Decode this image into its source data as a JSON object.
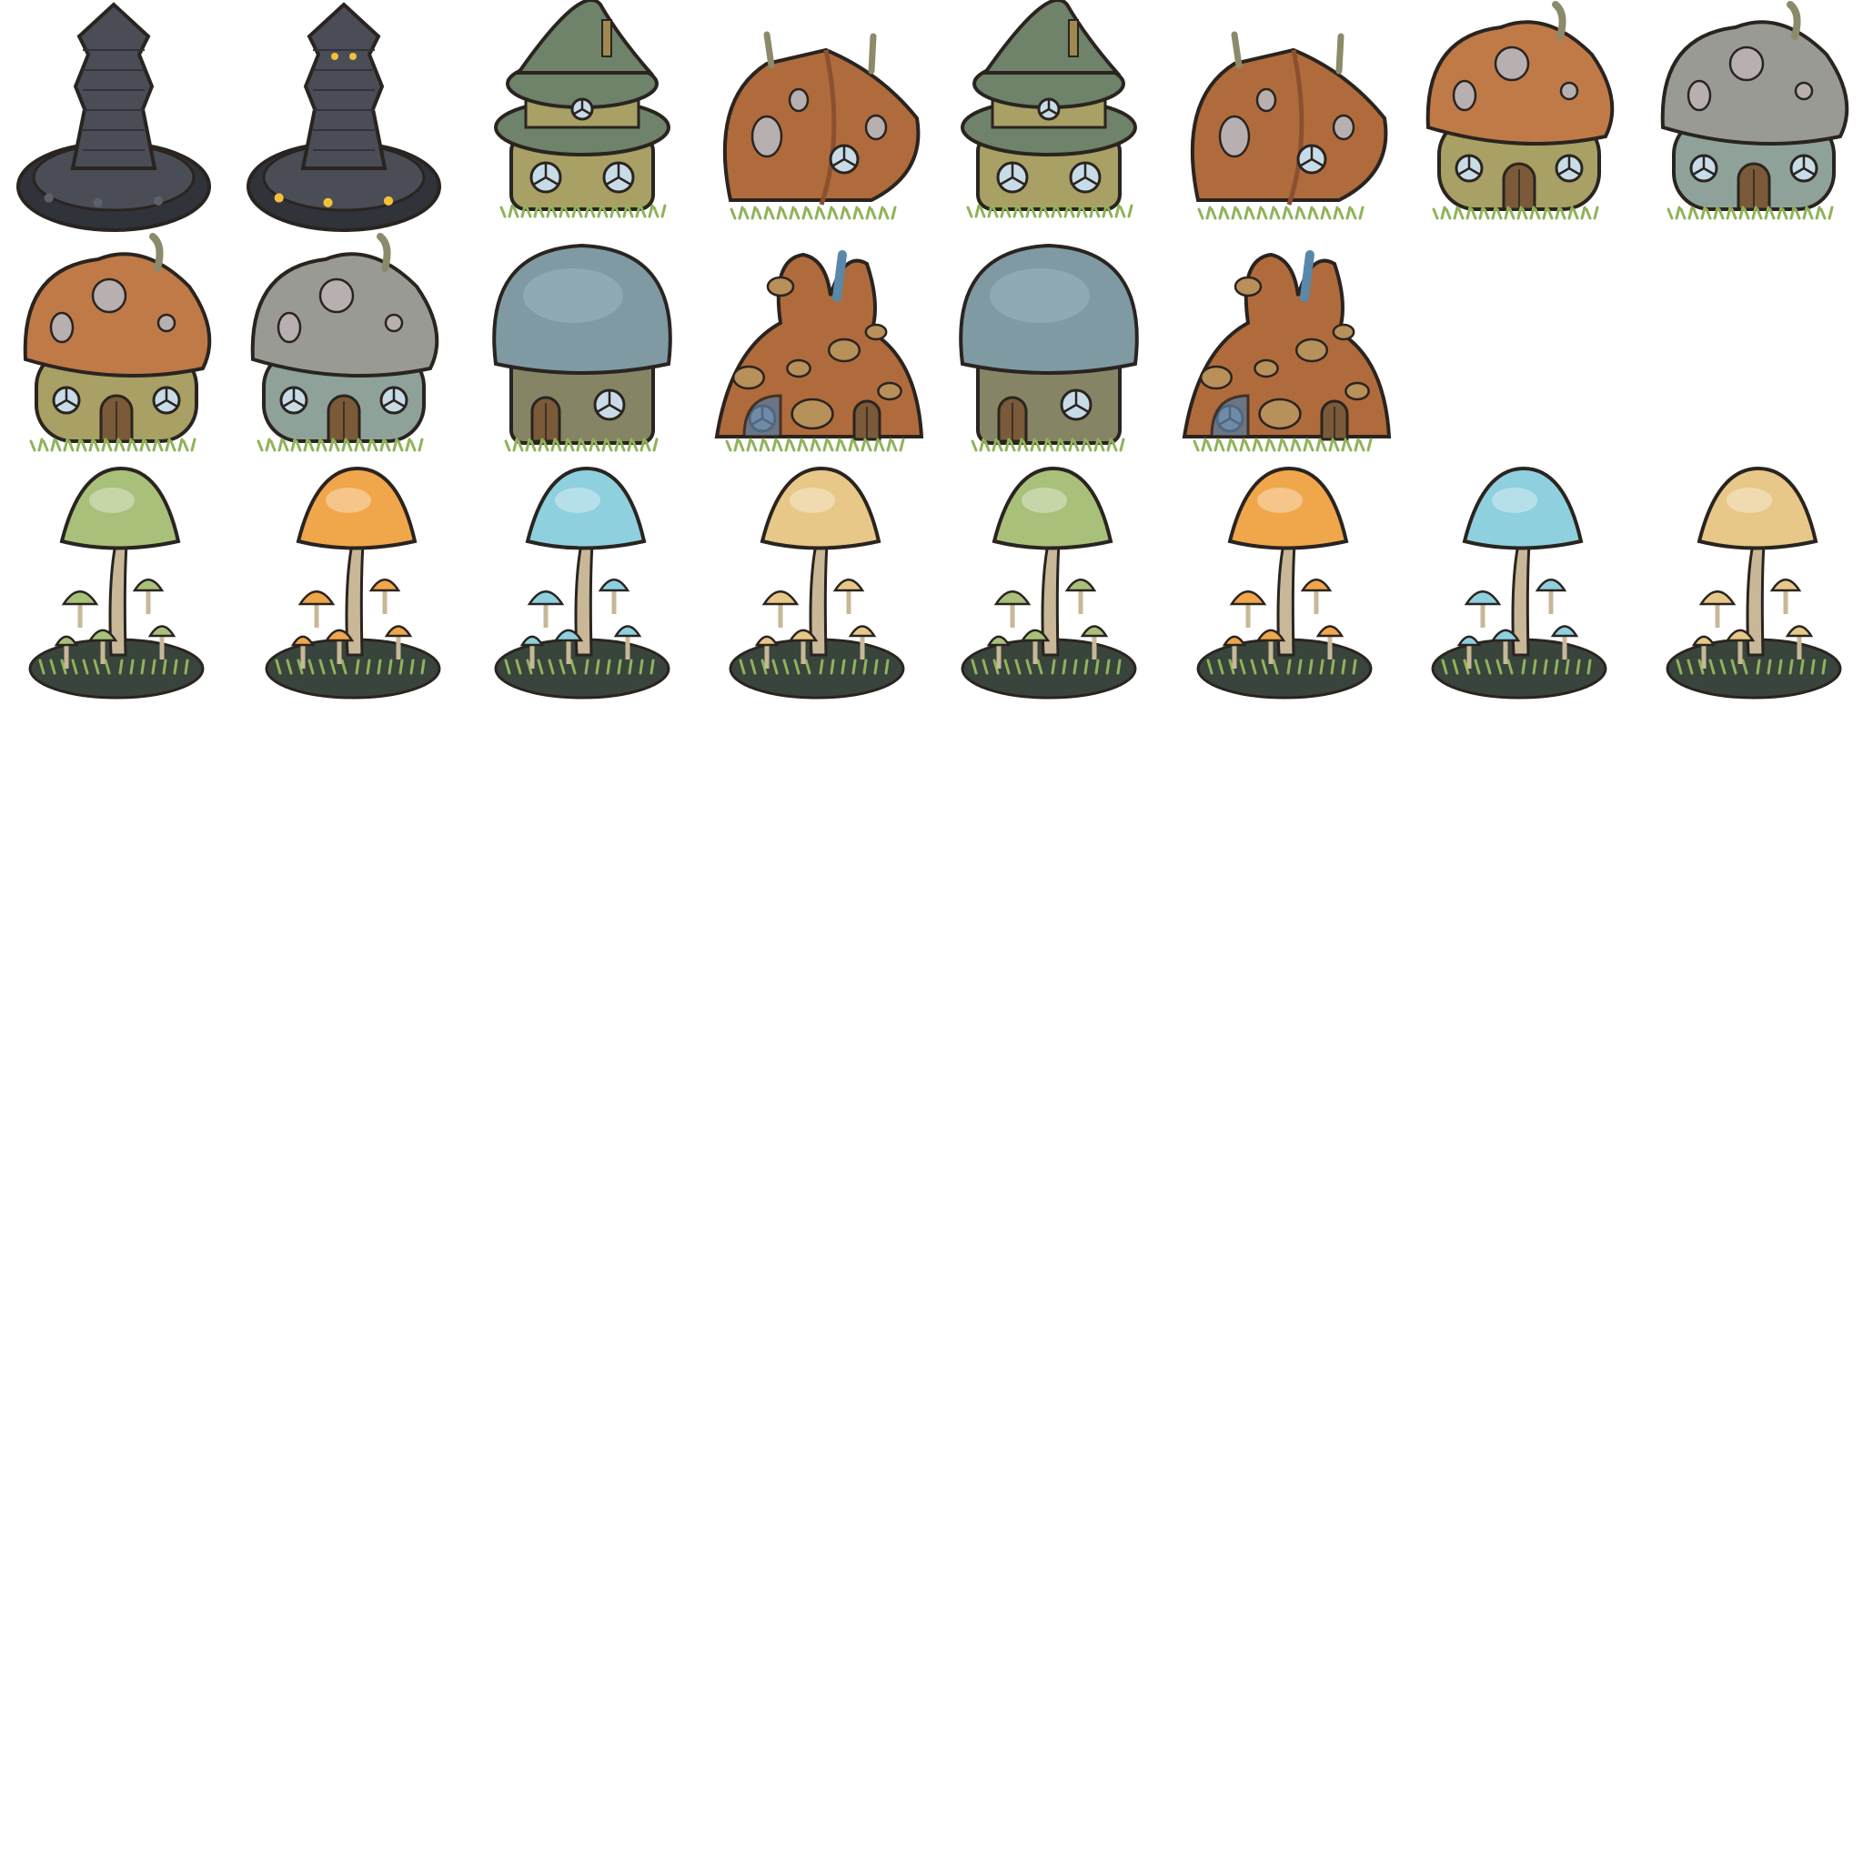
{
  "sheet": {
    "background": "#ffffff",
    "rows": [
      {
        "name": "buildings-row-1",
        "sprites": [
          {
            "name": "stone-obelisk-sprite",
            "kind": "obelisk",
            "variant": "dormant"
          },
          {
            "name": "stone-obelisk-glowing-sprite",
            "kind": "obelisk",
            "variant": "glowing"
          },
          {
            "name": "green-tower-house-sprite",
            "kind": "tower",
            "variant": "a"
          },
          {
            "name": "brown-gable-house-sprite",
            "kind": "gable",
            "variant": "a"
          },
          {
            "name": "green-tower-house-alt-sprite",
            "kind": "tower",
            "variant": "b"
          },
          {
            "name": "brown-gable-house-alt-sprite",
            "kind": "gable",
            "variant": "b"
          },
          {
            "name": "orange-mushroom-house-sprite",
            "kind": "mushroom-house",
            "variant": "orange"
          },
          {
            "name": "grey-mushroom-house-sprite",
            "kind": "mushroom-house",
            "variant": "grey"
          }
        ]
      },
      {
        "name": "buildings-row-2",
        "sprites": [
          {
            "name": "orange-mushroom-house-alt-sprite",
            "kind": "mushroom-house",
            "variant": "orange"
          },
          {
            "name": "grey-mushroom-house-alt-sprite",
            "kind": "mushroom-house",
            "variant": "grey"
          },
          {
            "name": "blue-dome-house-sprite",
            "kind": "dome",
            "variant": "a"
          },
          {
            "name": "brown-eared-house-sprite",
            "kind": "eared",
            "variant": "a"
          },
          {
            "name": "blue-dome-house-alt-sprite",
            "kind": "dome",
            "variant": "b"
          },
          {
            "name": "brown-eared-house-alt-sprite",
            "kind": "eared",
            "variant": "b"
          }
        ]
      },
      {
        "name": "mushroom-clusters-row",
        "sprites": [
          {
            "name": "green-mushroom-cluster-sprite",
            "kind": "cluster",
            "variant": "green"
          },
          {
            "name": "orange-mushroom-cluster-sprite",
            "kind": "cluster",
            "variant": "orange"
          },
          {
            "name": "blue-mushroom-cluster-sprite",
            "kind": "cluster",
            "variant": "blue"
          },
          {
            "name": "tan-mushroom-cluster-sprite",
            "kind": "cluster",
            "variant": "tan"
          },
          {
            "name": "green-mushroom-cluster-alt-sprite",
            "kind": "cluster",
            "variant": "green"
          },
          {
            "name": "orange-mushroom-cluster-alt-sprite",
            "kind": "cluster",
            "variant": "orange"
          },
          {
            "name": "blue-mushroom-cluster-alt-sprite",
            "kind": "cluster",
            "variant": "blue"
          },
          {
            "name": "tan-mushroom-cluster-alt-sprite",
            "kind": "cluster",
            "variant": "tan"
          }
        ]
      }
    ]
  },
  "colors": {
    "outline": "#2a2420",
    "stone": "#4a4d55",
    "stone_dark": "#30333a",
    "rune_glow": "#f2c23a",
    "green_roof": "#6f826a",
    "green_roof_dark": "#4f6150",
    "brick": "#a8a064",
    "brown_roof": "#b06b3c",
    "brown_roof_dark": "#8a5030",
    "orange_roof": "#bf7a48",
    "grey_roof": "#9a9a94",
    "teal_wall": "#8fa29a",
    "blue_dome": "#7f9aa3",
    "spot": "#b8b0b0",
    "window": "#c8dce8",
    "door": "#7a5a38",
    "grass": "#8fb35a",
    "cap_green": "#a9c07a",
    "cap_orange": "#f0a64a",
    "cap_blue": "#8fd0de",
    "cap_tan": "#e8c888",
    "ground_dark": "#39443c"
  }
}
